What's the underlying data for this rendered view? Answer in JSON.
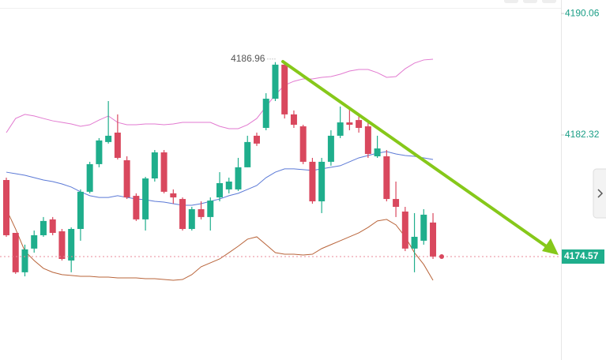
{
  "chart_data": {
    "type": "candlestick",
    "ylim": [
      4167.98,
      4190.92
    ],
    "yticks": [
      4190.06,
      4182.32
    ],
    "last_price": 4174.57,
    "annotation_high": 4186.96,
    "up_color": "#1fae8c",
    "down_color": "#d9485e",
    "open": [
      4179.45,
      4176.08,
      4173.57,
      4175.08,
      4175.93,
      4176.94,
      4176.18,
      4174.32,
      4176.33,
      4178.7,
      4180.46,
      4181.87,
      4182.47,
      4180.71,
      4178.44,
      4176.94,
      4179.55,
      4181.21,
      4178.6,
      4178.24,
      4176.33,
      4177.59,
      4177.09,
      4178.34,
      4178.85,
      4178.85,
      4180.26,
      4182.27,
      4182.77,
      4184.63,
      4186.8,
      4183.63,
      4182.87,
      4180.61,
      4178.09,
      4180.61,
      4182.27,
      4183.12,
      4183.27,
      4182.87,
      4180.96,
      4180.96,
      4178.24,
      4177.44,
      4175.08,
      4175.58,
      4176.74
    ],
    "high": [
      4179.6,
      4176.08,
      4175.33,
      4176.23,
      4177.09,
      4177.09,
      4176.33,
      4176.43,
      4178.85,
      4180.61,
      4182.12,
      4184.48,
      4183.63,
      4180.96,
      4178.6,
      4179.65,
      4181.36,
      4181.36,
      4178.85,
      4178.34,
      4177.74,
      4178.09,
      4178.34,
      4179.95,
      4179.6,
      4180.86,
      4182.27,
      4182.47,
      4184.98,
      4186.96,
      4186.9,
      4183.88,
      4182.97,
      4180.86,
      4180.86,
      4182.62,
      4184.13,
      4183.98,
      4183.63,
      4183.12,
      4182.27,
      4181.36,
      4179.35,
      4177.74,
      4177.34,
      4177.59,
      4177.34
    ],
    "low": [
      4175.83,
      4173.47,
      4173.31,
      4174.82,
      4175.83,
      4175.93,
      4174.32,
      4173.57,
      4175.58,
      4178.6,
      4180.26,
      4181.77,
      4180.76,
      4178.24,
      4176.84,
      4176.23,
      4179.35,
      4178.6,
      4177.94,
      4176.23,
      4176.23,
      4176.94,
      4176.23,
      4178.09,
      4178.6,
      4178.75,
      4180.26,
      4181.62,
      4182.62,
      4184.48,
      4183.37,
      4182.77,
      4180.46,
      4177.94,
      4177.34,
      4180.36,
      4182.12,
      4182.62,
      4182.47,
      4180.86,
      4180.86,
      4178.09,
      4177.09,
      4174.92,
      4173.57,
      4175.33,
      4174.42
    ],
    "close": [
      4175.93,
      4173.57,
      4175.03,
      4175.93,
      4176.84,
      4176.08,
      4174.42,
      4176.33,
      4178.7,
      4180.46,
      4181.97,
      4182.27,
      4180.86,
      4178.34,
      4176.94,
      4179.55,
      4181.21,
      4178.7,
      4178.34,
      4176.33,
      4177.59,
      4177.09,
      4178.14,
      4179.25,
      4179.35,
      4180.26,
      4181.87,
      4181.77,
      4184.63,
      4186.8,
      4183.63,
      4182.97,
      4180.61,
      4178.09,
      4180.61,
      4182.27,
      4183.12,
      4182.97,
      4182.77,
      4181.11,
      4181.46,
      4178.24,
      4177.74,
      4175.08,
      4175.83,
      4177.24,
      4174.57
    ],
    "bands": [
      {
        "color": "#e27ad0",
        "values": [
          4182.47,
          4183.37,
          4183.63,
          4183.53,
          4183.37,
          4183.22,
          4183.12,
          4183.02,
          4182.87,
          4182.97,
          4183.27,
          4183.53,
          4183.12,
          4182.97,
          4182.97,
          4183.02,
          4183.02,
          4182.97,
          4183.02,
          4183.12,
          4183.12,
          4183.12,
          4183.12,
          4182.87,
          4182.72,
          4182.72,
          4182.97,
          4183.37,
          4184.13,
          4184.88,
          4185.49,
          4185.74,
          4185.89,
          4185.89,
          4185.99,
          4186.04,
          4186.19,
          4186.39,
          4186.49,
          4186.49,
          4186.29,
          4185.99,
          4186.04,
          4186.54,
          4186.9,
          4187.1,
          4187.15
        ]
      },
      {
        "color": "#5b79d6",
        "values": [
          4179.95,
          4179.85,
          4179.75,
          4179.6,
          4179.45,
          4179.35,
          4179.2,
          4179.0,
          4178.7,
          4178.45,
          4178.34,
          4178.34,
          4178.45,
          4178.34,
          4178.24,
          4178.19,
          4178.09,
          4178.04,
          4177.94,
          4177.84,
          4177.84,
          4177.94,
          4178.09,
          4178.24,
          4178.45,
          4178.6,
          4178.85,
          4179.1,
          4179.6,
          4179.95,
          4180.16,
          4180.16,
          4180.11,
          4180.06,
          4180.16,
          4180.26,
          4180.36,
          4180.61,
          4180.86,
          4181.01,
          4181.16,
          4181.26,
          4181.11,
          4181.01,
          4180.96,
          4180.86,
          4180.76
        ]
      },
      {
        "color": "#b9643a",
        "values": [
          4177.59,
          4176.33,
          4174.92,
          4174.32,
          4173.82,
          4173.57,
          4173.42,
          4173.37,
          4173.31,
          4173.31,
          4173.26,
          4173.26,
          4173.21,
          4173.21,
          4173.21,
          4173.16,
          4173.16,
          4173.11,
          4173.06,
          4173.11,
          4173.42,
          4173.92,
          4174.17,
          4174.42,
          4174.82,
          4175.23,
          4175.68,
          4175.83,
          4175.33,
          4174.82,
          4174.72,
          4174.72,
          4174.67,
          4174.72,
          4175.08,
          4175.33,
          4175.58,
          4175.83,
          4176.08,
          4176.43,
          4176.84,
          4176.94,
          4176.59,
          4175.83,
          4174.82,
          4174.07,
          4173.06
        ]
      }
    ]
  }
}
